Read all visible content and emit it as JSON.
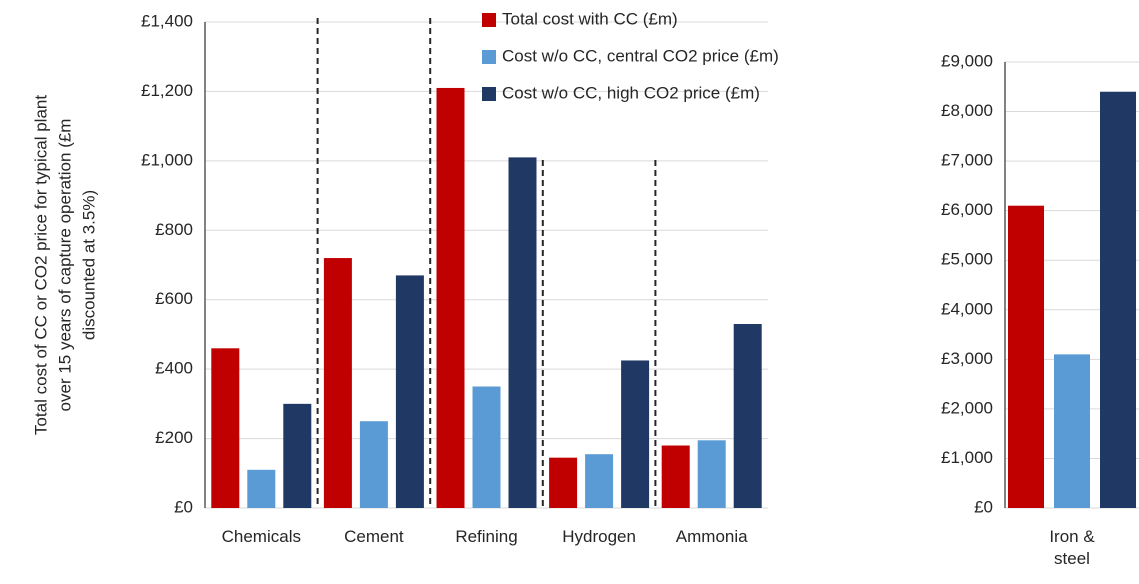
{
  "chart_data": [
    {
      "type": "bar",
      "y_label_lines": [
        "Total cost of CC or CO2 price for typical plant",
        "over 15 years of capture operation (£m",
        "discounted at 3.5%)"
      ],
      "categories": [
        "Chemicals",
        "Cement",
        "Refining",
        "Hydrogen",
        "Ammonia"
      ],
      "series": [
        {
          "name": "Total cost with CC (£m)",
          "color": "#c00000",
          "values": [
            460,
            720,
            1210,
            145,
            180
          ]
        },
        {
          "name": "Cost w/o CC, central CO2 price (£m)",
          "color": "#5b9bd5",
          "values": [
            110,
            250,
            350,
            155,
            195
          ]
        },
        {
          "name": "Cost w/o CC, high CO2 price (£m)",
          "color": "#1f3864",
          "values": [
            300,
            670,
            1010,
            425,
            530
          ]
        }
      ],
      "ylim": [
        0,
        1400
      ],
      "yticks": [
        {
          "value": 0,
          "label": "£0"
        },
        {
          "value": 200,
          "label": "£200"
        },
        {
          "value": 400,
          "label": "£400"
        },
        {
          "value": 600,
          "label": "£600"
        },
        {
          "value": 800,
          "label": "£800"
        },
        {
          "value": 1000,
          "label": "£1,000"
        },
        {
          "value": 1200,
          "label": "£1,200"
        },
        {
          "value": 1400,
          "label": "£1,400"
        }
      ],
      "grid": true,
      "legend": "top"
    },
    {
      "type": "bar",
      "categories": [
        "Iron & steel"
      ],
      "series": [
        {
          "color": "#c00000",
          "values": [
            6100
          ]
        },
        {
          "color": "#5b9bd5",
          "values": [
            3100
          ]
        },
        {
          "color": "#1f3864",
          "values": [
            8400
          ]
        }
      ],
      "ylim": [
        0,
        9000
      ],
      "yticks": [
        {
          "value": 0,
          "label": "£0"
        },
        {
          "value": 1000,
          "label": "£1,000"
        },
        {
          "value": 2000,
          "label": "£2,000"
        },
        {
          "value": 3000,
          "label": "£3,000"
        },
        {
          "value": 4000,
          "label": "£4,000"
        },
        {
          "value": 5000,
          "label": "£5,000"
        },
        {
          "value": 6000,
          "label": "£6,000"
        },
        {
          "value": 7000,
          "label": "£7,000"
        },
        {
          "value": 8000,
          "label": "£8,000"
        },
        {
          "value": 9000,
          "label": "£9,000"
        }
      ],
      "grid": true
    }
  ]
}
